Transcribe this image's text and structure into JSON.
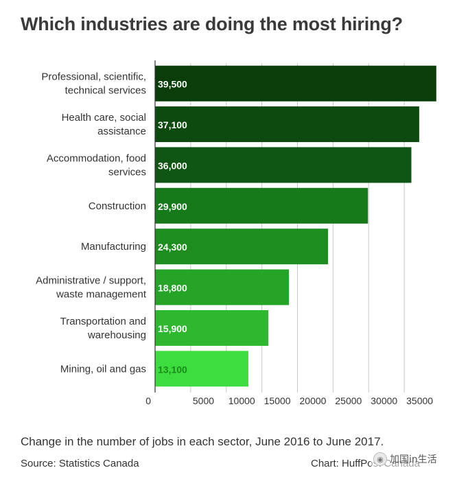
{
  "title": "Which industries are doing the most hiring?",
  "chart_data": {
    "type": "bar",
    "orientation": "horizontal",
    "title": "Which industries are doing the most hiring?",
    "categories": [
      [
        "Professional, scientific,",
        "technical services"
      ],
      [
        "Health care, social",
        "assistance"
      ],
      [
        "Accommodation, food",
        "services"
      ],
      [
        "Construction"
      ],
      [
        "Manufacturing"
      ],
      [
        "Administrative / support,",
        "waste management"
      ],
      [
        "Transportation and",
        "warehousing"
      ],
      [
        "Mining, oil and gas"
      ]
    ],
    "values": [
      39500,
      37100,
      36000,
      29900,
      24300,
      18800,
      15900,
      13100
    ],
    "value_labels": [
      "39,500",
      "37,100",
      "36,000",
      "29,900",
      "24,300",
      "18,800",
      "15,900",
      "13,100"
    ],
    "bar_colors": [
      "#0b3d0b",
      "#0d4a10",
      "#0f5513",
      "#177a1a",
      "#1d8d20",
      "#25a428",
      "#2db830",
      "#3ddc3f"
    ],
    "value_label_colors": [
      "#ffffff",
      "#ffffff",
      "#ffffff",
      "#ffffff",
      "#ffffff",
      "#ffffff",
      "#ffffff",
      "#1c8a1e"
    ],
    "x_ticks": [
      0,
      5000,
      10000,
      15000,
      20000,
      25000,
      30000,
      35000
    ],
    "x_tick_labels": [
      "0",
      "5000",
      "10000",
      "15000",
      "20000",
      "25000",
      "30000",
      "35000"
    ],
    "xlim": [
      0,
      40000
    ],
    "grid": "vertical",
    "legend": "none"
  },
  "footer": {
    "caption": "Change in the number of jobs in each sector, June 2016 to June 2017.",
    "source": "Source: Statistics Canada",
    "credit": "Chart: HuffPost Canada"
  },
  "watermark": {
    "text": "加国in生活",
    "icon": "wechat-icon"
  }
}
